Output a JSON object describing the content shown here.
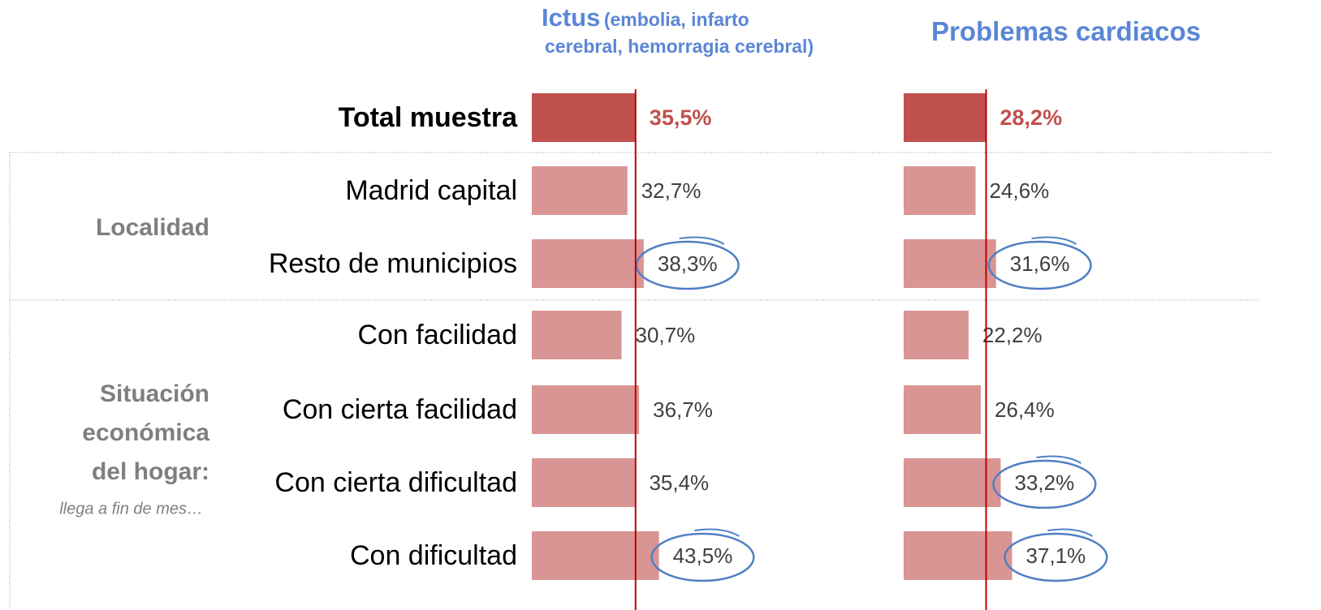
{
  "chart_data": [
    {
      "type": "bar",
      "orientation": "horizontal",
      "title": "Ictus",
      "subtitle": [
        "(embolia, infarto",
        "cerebral, hemorragia cerebral)"
      ],
      "categories": [
        "Total muestra",
        "Madrid capital",
        "Resto de municipios",
        "Con facilidad",
        "Con cierta facilidad",
        "Con cierta dificultad",
        "Con dificultad"
      ],
      "groups": [
        {
          "label": [
            "Localidad"
          ]
        },
        {
          "label": [
            "Situación",
            "económica",
            "del hogar:"
          ],
          "note": "llega a fin de mes…"
        }
      ],
      "values": [
        35.5,
        32.7,
        38.3,
        30.7,
        36.7,
        35.4,
        43.5
      ],
      "value_labels": [
        "35,5%",
        "32,7%",
        "38,3%",
        "30,7%",
        "36,7%",
        "35,4%",
        "43,5%"
      ],
      "highlight": [
        2,
        6
      ],
      "color": "#d99594",
      "total_color": "#c0504d",
      "reference_color": "#c00000",
      "highlight_color": "#4f7fc4"
    },
    {
      "type": "bar",
      "orientation": "horizontal",
      "title": "Problemas cardiacos",
      "values": [
        28.2,
        24.6,
        31.6,
        22.2,
        26.4,
        33.2,
        37.1
      ],
      "value_labels": [
        "28,2%",
        "24,6%",
        "31,6%",
        "22,2%",
        "26,4%",
        "33,2%",
        "37,1%"
      ],
      "highlight": [
        2,
        5,
        6
      ],
      "color": "#d99594",
      "total_color": "#c0504d",
      "reference_color": "#c00000",
      "highlight_color": "#4f7fc4"
    }
  ]
}
